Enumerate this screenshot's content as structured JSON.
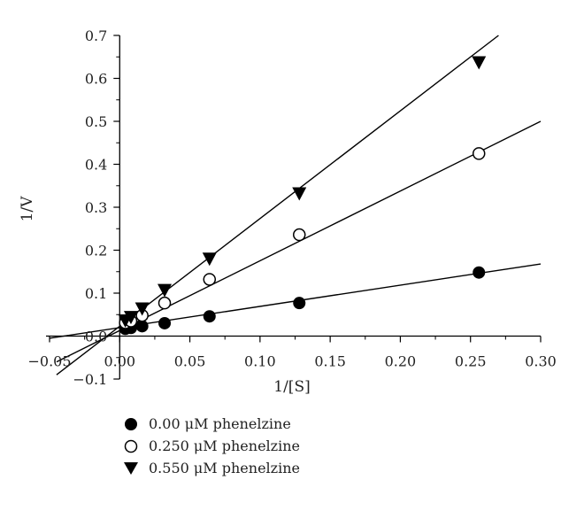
{
  "chart_data": {
    "type": "scatter",
    "xlabel": "1/[S]",
    "ylabel": "1/V",
    "xlim": [
      -0.05,
      0.3
    ],
    "ylim": [
      -0.1,
      0.7
    ],
    "x_ticks": [
      "−0.05",
      "0.00",
      "0.05",
      "0.10",
      "0.15",
      "0.20",
      "0.25",
      "0.30"
    ],
    "y_ticks": [
      "−0.1",
      "0.0",
      "0.1",
      "0.2",
      "0.3",
      "0.4",
      "0.5",
      "0.6",
      "0.7"
    ],
    "x_tick_values": [
      -0.05,
      0.0,
      0.05,
      0.1,
      0.15,
      0.2,
      0.25,
      0.3
    ],
    "y_tick_values": [
      -0.1,
      0.0,
      0.1,
      0.2,
      0.3,
      0.4,
      0.5,
      0.6,
      0.7
    ],
    "legend_position": "bottom-left",
    "series": [
      {
        "name": "0.00 μM phenelzine",
        "marker": "filled-circle",
        "color": "#000000",
        "x": [
          0.004,
          0.008,
          0.016,
          0.032,
          0.064,
          0.128,
          0.256
        ],
        "y": [
          0.017,
          0.019,
          0.023,
          0.03,
          0.046,
          0.077,
          0.148
        ],
        "fit_line": {
          "x": [
            -0.05,
            0.3
          ],
          "y": [
            -0.005,
            0.168
          ]
        }
      },
      {
        "name": "0.250 μM phenelzine",
        "marker": "open-circle",
        "color": "#000000",
        "x": [
          0.004,
          0.008,
          0.016,
          0.032,
          0.064,
          0.128,
          0.256
        ],
        "y": [
          0.031,
          0.035,
          0.048,
          0.077,
          0.132,
          0.236,
          0.425
        ],
        "fit_line": {
          "x": [
            -0.045,
            0.3
          ],
          "y": [
            -0.06,
            0.5
          ]
        }
      },
      {
        "name": "0.550 μM phenelzine",
        "marker": "filled-triangle-down",
        "color": "#000000",
        "x": [
          0.004,
          0.008,
          0.016,
          0.032,
          0.064,
          0.128,
          0.256
        ],
        "y": [
          0.036,
          0.044,
          0.064,
          0.107,
          0.18,
          0.332,
          0.637
        ],
        "fit_line": {
          "x": [
            -0.045,
            0.27
          ],
          "y": [
            -0.09,
            0.7
          ]
        }
      }
    ]
  }
}
